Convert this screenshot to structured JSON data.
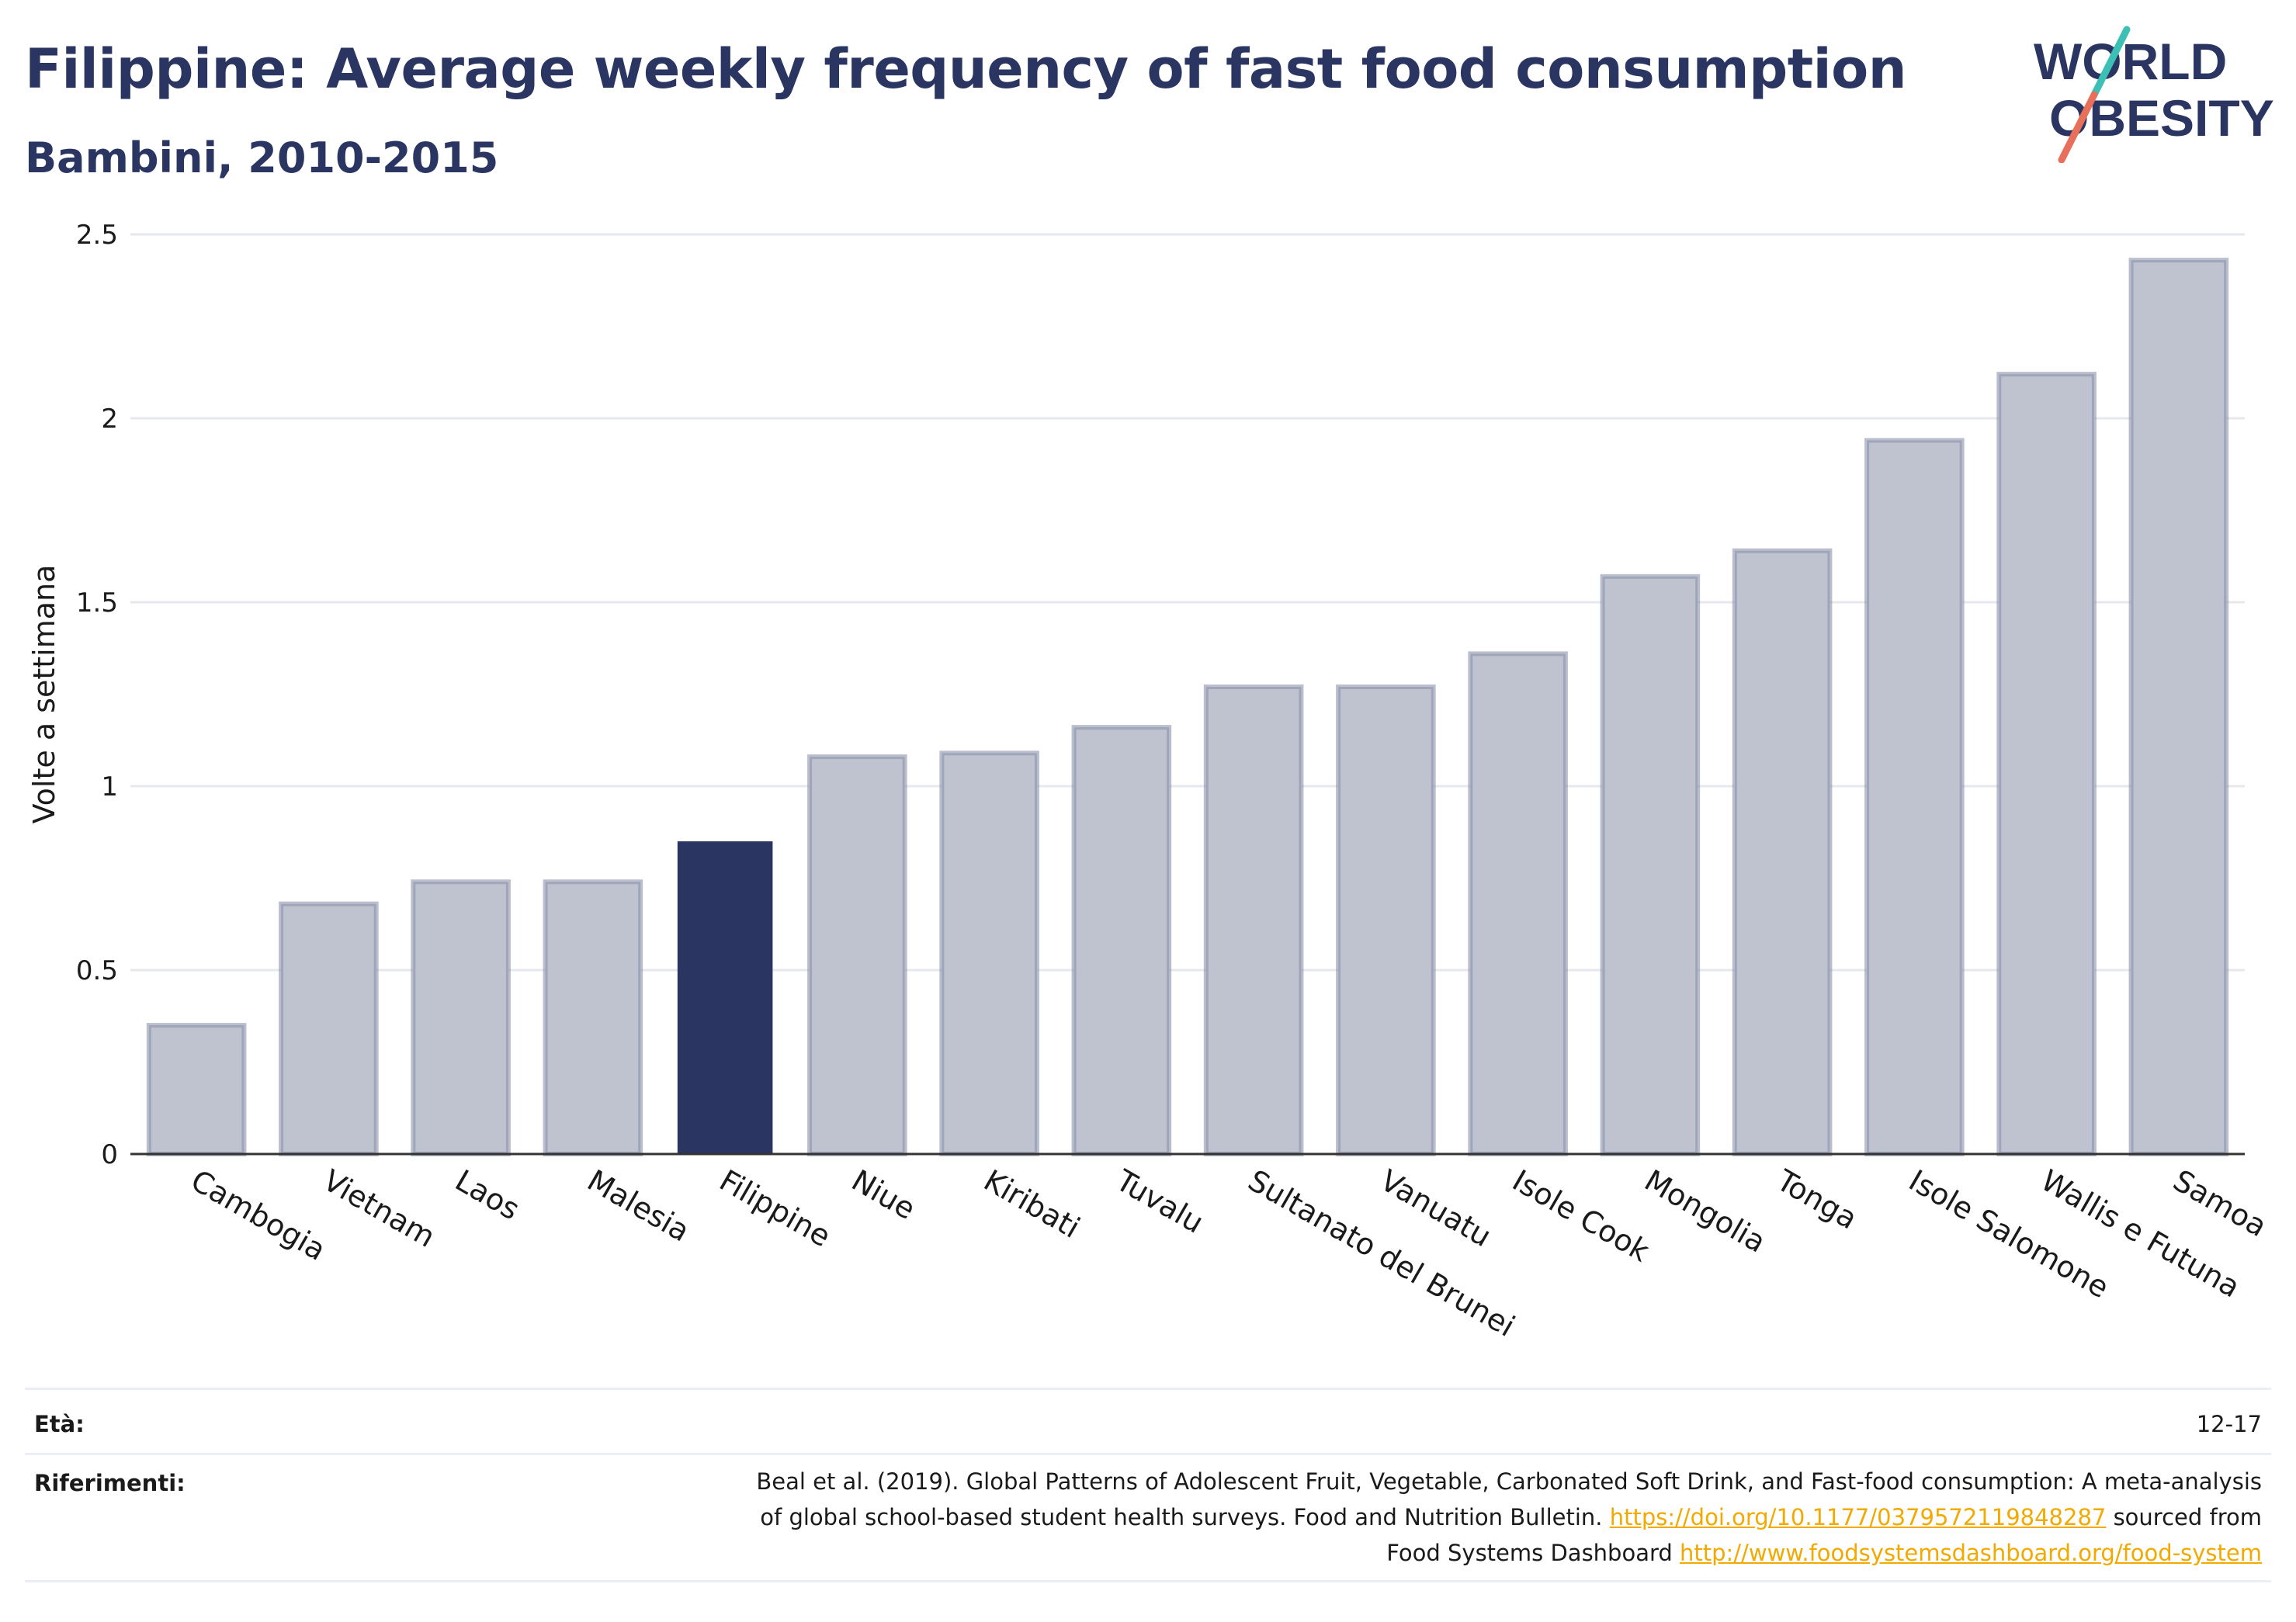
{
  "header": {
    "title": "Filippine: Average weekly frequency of fast food consumption",
    "subtitle": "Bambini, 2010-2015",
    "logo_text": [
      "WORLD",
      "OBESITY"
    ]
  },
  "colors": {
    "brand_navy": "#2a3561",
    "bar_default": "#bfc3d0",
    "bar_default_edge": "#8c93ab",
    "bar_highlight": "#2a3561",
    "logo_teal": "#3cbfb4",
    "logo_coral": "#e8705a",
    "link": "#f2a900"
  },
  "chart_data": {
    "type": "bar",
    "title": "Filippine: Average weekly frequency of fast food consumption",
    "subtitle": "Bambini, 2010-2015",
    "xlabel": "",
    "ylabel": "Volte a settimana",
    "ylim": [
      0,
      2.5
    ],
    "yticks": [
      0,
      0.5,
      1,
      1.5,
      2,
      2.5
    ],
    "ytick_labels": [
      "0",
      "0.5",
      "1",
      "1.5",
      "2",
      "2.5"
    ],
    "grid": true,
    "highlight": "Filippine",
    "categories": [
      "Cambogia",
      "Vietnam",
      "Laos",
      "Malesia",
      "Filippine",
      "Niue",
      "Kiribati",
      "Tuvalu",
      "Sultanato del Brunei",
      "Vanuatu",
      "Isole Cook",
      "Mongolia",
      "Tonga",
      "Isole Salomone",
      "Wallis e Futuna",
      "Samoa"
    ],
    "values": [
      0.35,
      0.68,
      0.74,
      0.74,
      0.85,
      1.08,
      1.09,
      1.16,
      1.27,
      1.27,
      1.36,
      1.57,
      1.64,
      1.94,
      2.12,
      2.43
    ]
  },
  "footer": {
    "age_label": "Età:",
    "age_value": "12-17",
    "refs_label": "Riferimenti:",
    "refs_line1": "Beal et al. (2019). Global Patterns of Adolescent Fruit, Vegetable, Carbonated Soft Drink, and Fast-food consumption: A meta-analysis",
    "refs_line2_text": "of global school-based student health surveys. Food and Nutrition Bulletin.",
    "refs_doi": "https://doi.org/10.1177/0379572119848287",
    "refs_line2_suffix": "sourced from",
    "refs_line3_text": "Food Systems Dashboard",
    "refs_url": "http://www.foodsystemsdashboard.org/food-system"
  }
}
